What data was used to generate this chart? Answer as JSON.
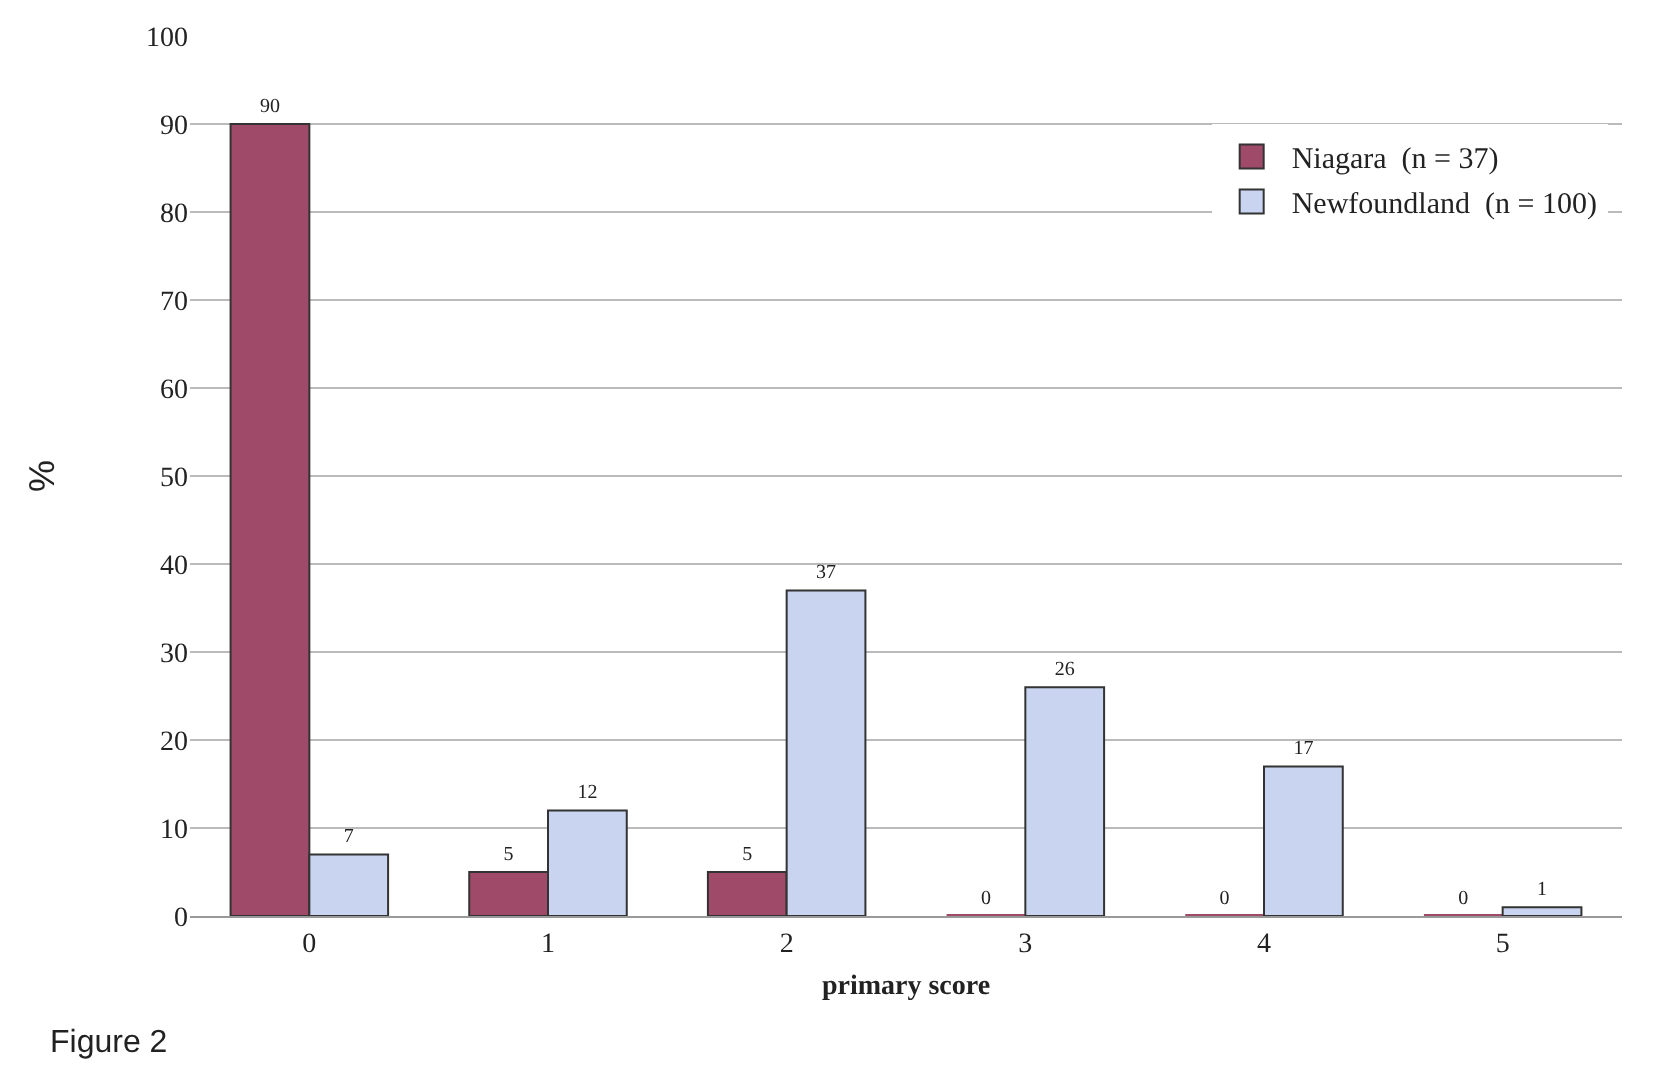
{
  "chart_data": {
    "type": "bar",
    "xlabel": "primary score",
    "ylabel": "%",
    "categories": [
      "0",
      "1",
      "2",
      "3",
      "4",
      "5"
    ],
    "series": [
      {
        "name": "Niagara  (n = 37)",
        "color": "#9e4a68",
        "values": [
          90,
          5,
          5,
          0,
          0,
          0
        ]
      },
      {
        "name": "Newfoundland  (n = 100)",
        "color": "#c9d5f0",
        "values": [
          7,
          12,
          37,
          26,
          17,
          1
        ]
      }
    ],
    "ylim": [
      0,
      100
    ],
    "yticks": [
      0,
      10,
      20,
      30,
      40,
      50,
      60,
      70,
      80,
      90,
      100
    ],
    "grid": "y",
    "legend": "top right",
    "data_labels": true,
    "annotations": [
      "Figure 2"
    ]
  }
}
